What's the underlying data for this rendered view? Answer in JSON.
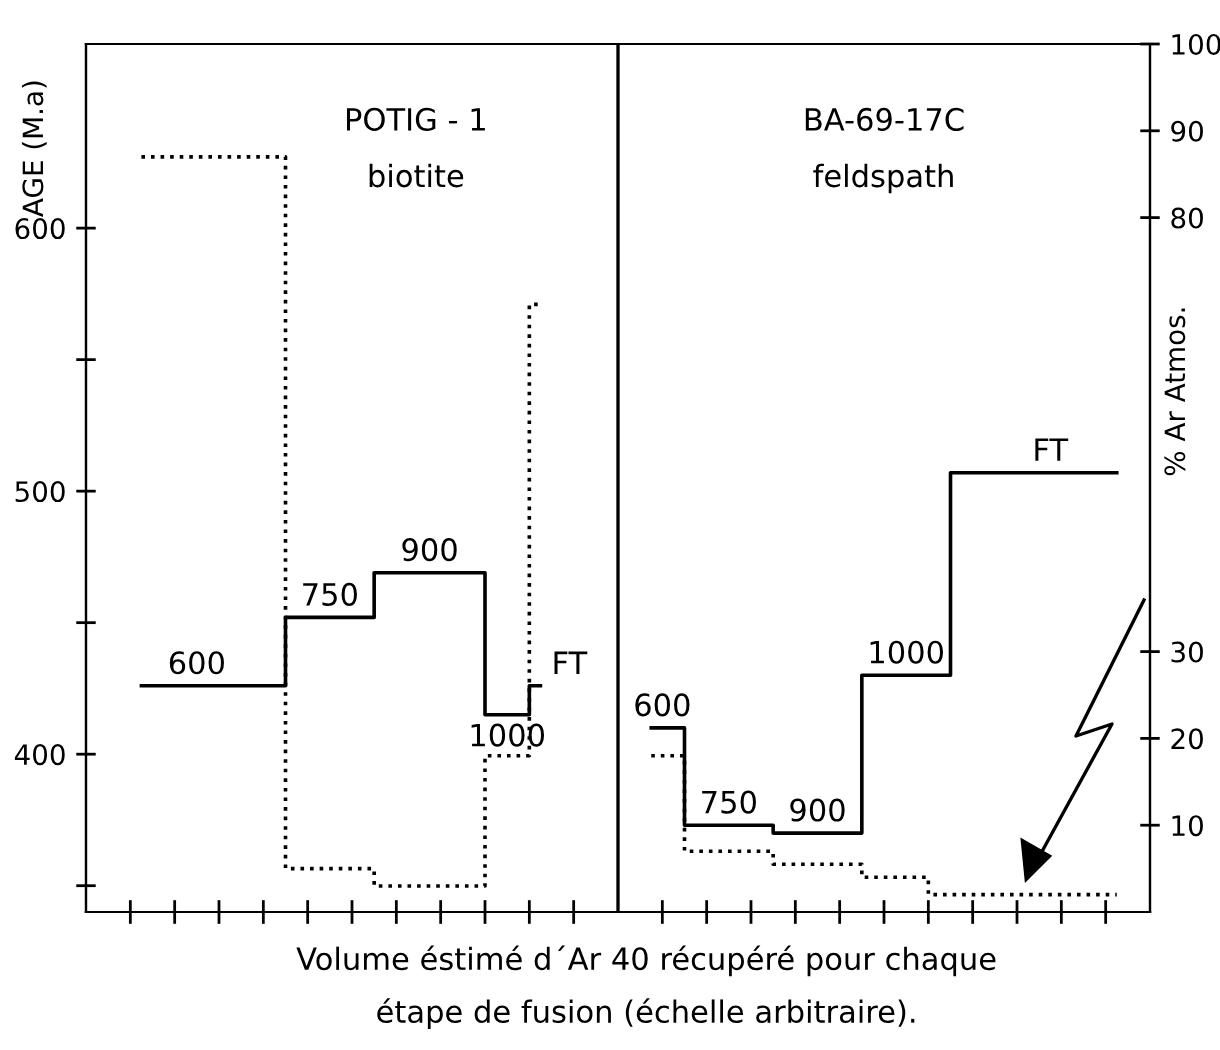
{
  "chart_data": {
    "type": "step",
    "ylabel": "AGE (M.a)",
    "y2label": "% Ar Atmos.",
    "xlabel": "Volume éstimé d´Ar 40 récupéré pour chaque\nétape de fusion (échelle arbitraire).",
    "categories": [
      null,
      null,
      null,
      null,
      null,
      null,
      null,
      null,
      null,
      null,
      null,
      null,
      null,
      null,
      null,
      null,
      null,
      null,
      null,
      null,
      null,
      null,
      null,
      null,
      null,
      null,
      null,
      null,
      null,
      null,
      null,
      null,
      null,
      null,
      null,
      null,
      null,
      null,
      null,
      null,
      null,
      null,
      null,
      null,
      null,
      null,
      null,
      null
    ],
    "ylim": [
      340,
      670
    ],
    "yticks": [
      {
        "value": 350,
        "label": null
      },
      400,
      {
        "value": 450,
        "label": null
      },
      500,
      {
        "value": 550,
        "label": null
      },
      600
    ],
    "y2lim": [
      0,
      100
    ],
    "y2ticks": [
      10,
      20,
      30,
      80,
      90,
      100
    ],
    "grid": false,
    "legend": false,
    "marker": "none",
    "series": [
      {
        "color": "#000000",
        "line_style": "solid",
        "values": [
          null,
          null,
          426,
          426,
          426,
          426,
          426,
          426,
          426,
          452,
          452,
          452,
          452,
          469,
          469,
          469,
          469,
          469,
          415,
          415,
          426,
          null,
          null,
          null,
          null,
          null,
          null,
          null,
          null,
          null,
          null,
          null,
          null,
          null,
          null,
          null,
          null,
          null,
          null,
          null,
          null,
          null,
          null,
          null,
          null,
          null,
          null,
          null
        ]
      },
      {
        "axis": "y2",
        "color": "#000000",
        "line_style": "dotted",
        "values": [
          null,
          null,
          87,
          87,
          87,
          87,
          87,
          87,
          87,
          5,
          5,
          5,
          5,
          3,
          3,
          3,
          3,
          3,
          18,
          18,
          70,
          null,
          null,
          null,
          null,
          null,
          null,
          null,
          null,
          null,
          null,
          null,
          null,
          null,
          null,
          null,
          null,
          null,
          null,
          null,
          null,
          null,
          null,
          null,
          null,
          null,
          null,
          null
        ]
      },
      {
        "color": "#000000",
        "line_style": "solid",
        "values": [
          null,
          null,
          null,
          null,
          null,
          null,
          null,
          null,
          null,
          null,
          null,
          null,
          null,
          null,
          null,
          null,
          null,
          null,
          null,
          null,
          null,
          null,
          null,
          null,
          null,
          410,
          410,
          373,
          373,
          373,
          373,
          370,
          370,
          370,
          370,
          430,
          430,
          430,
          430,
          507,
          507,
          507,
          507,
          507,
          507,
          507,
          507,
          null
        ]
      },
      {
        "axis": "y2",
        "color": "#000000",
        "line_style": "dotted",
        "values": [
          null,
          null,
          null,
          null,
          null,
          null,
          null,
          null,
          null,
          null,
          null,
          null,
          null,
          null,
          null,
          null,
          null,
          null,
          null,
          null,
          null,
          null,
          null,
          null,
          null,
          18,
          18,
          7,
          7,
          7,
          7,
          5.5,
          5.5,
          5.5,
          5.5,
          4,
          4,
          4,
          2,
          2,
          2,
          2,
          2,
          2,
          2,
          2,
          2,
          null
        ]
      }
    ],
    "annotations": [
      "600",
      "750",
      "900",
      "1000",
      "FT",
      "600",
      "750",
      "900",
      "1000",
      "FT",
      "POTIG - 1",
      "biotite",
      "BA-69-17C",
      "feldspath"
    ]
  }
}
